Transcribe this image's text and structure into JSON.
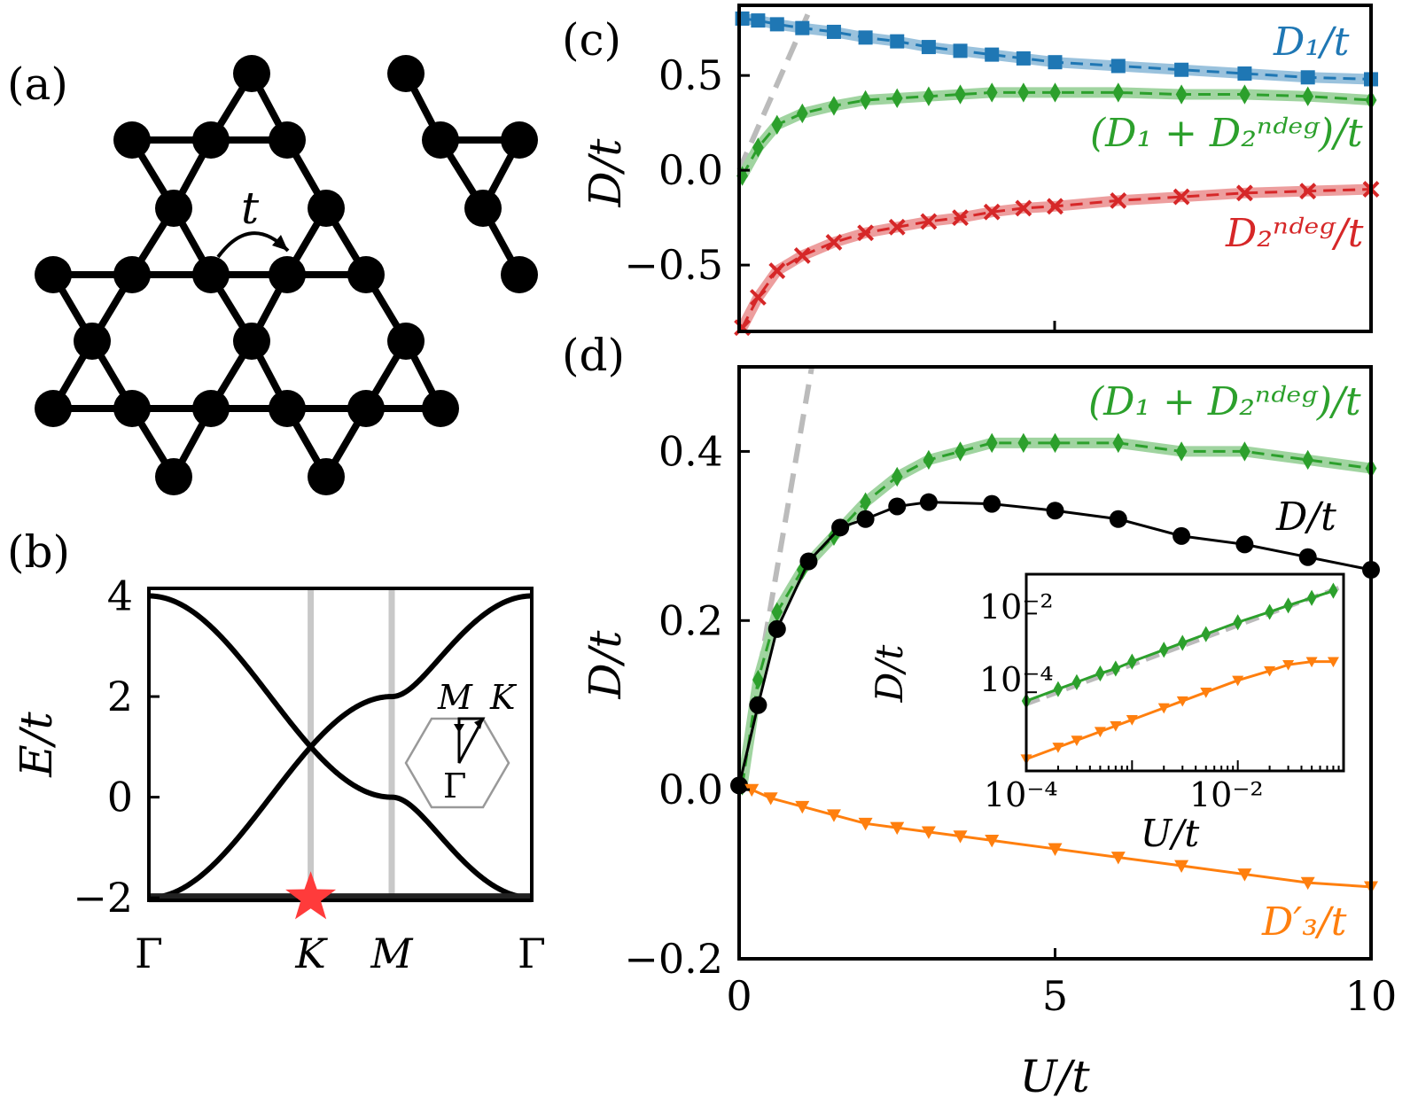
{
  "panel_labels": {
    "a": "(a)",
    "b": "(b)",
    "c": "(c)",
    "d": "(d)"
  },
  "lattice": {
    "hopping_label": "t"
  },
  "chart_data": [
    {
      "id": "b",
      "type": "line",
      "ylabel": "E/t",
      "ylim": [
        -2.05,
        4.15
      ],
      "yticks": [
        "4",
        "2",
        "0",
        "−2"
      ],
      "yticks_values": [
        4,
        2,
        0,
        -2
      ],
      "xticks": [
        "Γ",
        "K",
        "M",
        "Γ"
      ],
      "xticks_values": [
        0,
        2.094,
        3.142,
        4.954
      ],
      "vlines_at": [
        "K",
        "M"
      ],
      "flat_band": -2,
      "flat_band_marker": "red star at K",
      "bz_inset_labels": {
        "M": "M",
        "K": "K",
        "G": "Γ"
      },
      "series": [
        {
          "values": "upper dispersive band, E = 1 + sqrt(3 + 2Σcos)"
        },
        {
          "values": "lower dispersive band, E = 1 − sqrt(3 + 2Σcos)"
        }
      ]
    },
    {
      "id": "c",
      "type": "line",
      "ylabel": "D/t",
      "ylim": [
        -0.85,
        0.87
      ],
      "xlim": [
        0,
        10
      ],
      "yticks": [
        "0.5",
        "0.0",
        "−0.5"
      ],
      "yticks_values": [
        0.5,
        0.0,
        -0.5
      ],
      "series": [
        {
          "name": "D₁/t",
          "color": "#1f77b4",
          "x": [
            0.05,
            0.3,
            0.6,
            1,
            1.5,
            2,
            2.5,
            3,
            3.5,
            4,
            4.5,
            5,
            6,
            7,
            8,
            9,
            10
          ],
          "y": [
            0.8,
            0.79,
            0.77,
            0.75,
            0.73,
            0.7,
            0.68,
            0.65,
            0.63,
            0.61,
            0.59,
            0.57,
            0.55,
            0.53,
            0.51,
            0.49,
            0.48
          ]
        },
        {
          "name": "(D₁ + D₂ⁿᵈᵉᵍ)/t",
          "color": "#2ca02c",
          "x": [
            0.05,
            0.3,
            0.6,
            1,
            1.5,
            2,
            2.5,
            3,
            3.5,
            4,
            4.5,
            5,
            6,
            7,
            8,
            9,
            10
          ],
          "y": [
            -0.03,
            0.12,
            0.24,
            0.3,
            0.34,
            0.37,
            0.38,
            0.39,
            0.4,
            0.41,
            0.41,
            0.41,
            0.41,
            0.4,
            0.4,
            0.39,
            0.37
          ]
        },
        {
          "name": "D₂ⁿᵈᵉᵍ/t",
          "color": "#d62728",
          "x": [
            0.05,
            0.3,
            0.6,
            1,
            1.5,
            2,
            2.5,
            3,
            3.5,
            4,
            4.5,
            5,
            6,
            7,
            8,
            9,
            10
          ],
          "y": [
            -0.83,
            -0.67,
            -0.53,
            -0.45,
            -0.38,
            -0.33,
            -0.3,
            -0.27,
            -0.25,
            -0.22,
            -0.2,
            -0.19,
            -0.16,
            -0.14,
            -0.12,
            -0.11,
            -0.1
          ]
        }
      ],
      "dashed_guide": {
        "color": "#bbbbbb",
        "x": [
          0,
          1.15
        ],
        "y": [
          0,
          0.87
        ]
      }
    },
    {
      "id": "d",
      "type": "line",
      "xlabel": "U/t",
      "ylabel": "D/t",
      "xlim": [
        0,
        10
      ],
      "ylim": [
        -0.2,
        0.5
      ],
      "xticks": [
        "0",
        "5",
        "10"
      ],
      "xticks_values": [
        0,
        5,
        10
      ],
      "yticks": [
        "0.4",
        "0.2",
        "0.0",
        "−0.2"
      ],
      "yticks_values": [
        0.4,
        0.2,
        0.0,
        -0.2
      ],
      "series": [
        {
          "name": "(D₁ + D₂ⁿᵈᵉᵍ)/t",
          "color": "#2ca02c",
          "x": [
            0.05,
            0.3,
            0.6,
            1,
            1.5,
            2,
            2.5,
            3,
            3.5,
            4,
            4.5,
            5,
            6,
            7,
            8,
            9,
            10
          ],
          "y": [
            0.005,
            0.13,
            0.21,
            0.26,
            0.3,
            0.34,
            0.37,
            0.39,
            0.4,
            0.41,
            0.41,
            0.41,
            0.41,
            0.4,
            0.4,
            0.39,
            0.38
          ]
        },
        {
          "name": "D/t",
          "color": "#000000",
          "x": [
            0,
            0.3,
            0.6,
            1.1,
            1.6,
            2,
            2.5,
            3,
            4,
            5,
            6,
            7,
            8,
            9,
            10
          ],
          "y": [
            0.005,
            0.1,
            0.19,
            0.27,
            0.31,
            0.32,
            0.335,
            0.34,
            0.338,
            0.33,
            0.32,
            0.3,
            0.29,
            0.275,
            0.26
          ]
        },
        {
          "name": "D′₃/t",
          "color": "#ff7f0e",
          "x": [
            0.2,
            0.5,
            1,
            1.5,
            2,
            2.5,
            3,
            3.5,
            4,
            5,
            6,
            7,
            8,
            9,
            10
          ],
          "y": [
            0,
            -0.01,
            -0.02,
            -0.03,
            -0.04,
            -0.045,
            -0.05,
            -0.055,
            -0.06,
            -0.07,
            -0.08,
            -0.09,
            -0.1,
            -0.11,
            -0.115
          ]
        }
      ],
      "dashed_guide": {
        "color": "#bbbbbb",
        "x": [
          0,
          1.15
        ],
        "y": [
          0,
          0.5
        ]
      },
      "inset": {
        "xlabel": "U/t",
        "ylabel": "D/t",
        "xscale": "log",
        "yscale": "log",
        "xlim": [
          0.0001,
          0.1
        ],
        "ylim": [
          1e-06,
          0.1
        ],
        "xticks": [
          "10⁻⁴",
          "10⁻²"
        ],
        "yticks": [
          "10⁻²",
          "10⁻⁴"
        ],
        "series": [
          {
            "color": "#2ca02c",
            "x": [
              0.0001,
              0.0002,
              0.0003,
              0.0005,
              0.0007,
              0.001,
              0.002,
              0.003,
              0.005,
              0.01,
              0.02,
              0.03,
              0.05,
              0.08
            ],
            "y": [
              6e-05,
              0.00012,
              0.00018,
              0.0003,
              0.0004,
              0.0006,
              0.0012,
              0.0018,
              0.003,
              0.006,
              0.011,
              0.016,
              0.025,
              0.038
            ]
          },
          {
            "color": "#ff7f0e",
            "x": [
              0.0001,
              0.0002,
              0.0003,
              0.0005,
              0.0007,
              0.001,
              0.002,
              0.003,
              0.005,
              0.01,
              0.02,
              0.03,
              0.05,
              0.08
            ],
            "y": [
              2e-06,
              4e-06,
              6e-06,
              1e-05,
              1.4e-05,
              2e-05,
              4e-05,
              6e-05,
              0.0001,
              0.0002,
              0.00035,
              0.0005,
              0.0006,
              0.0006
            ]
          }
        ]
      }
    }
  ]
}
